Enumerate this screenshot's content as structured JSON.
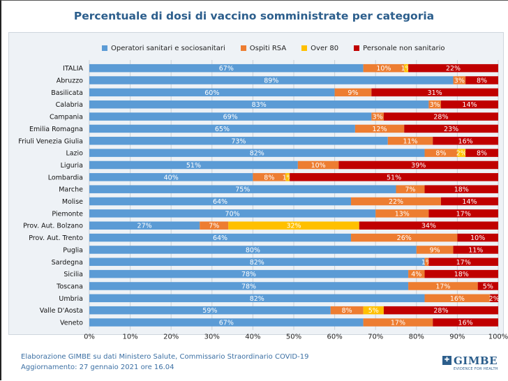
{
  "chart_data": {
    "type": "bar",
    "orientation": "horizontal",
    "stacked": true,
    "title": "Percentuale di dosi di vaccino somministrate per categoria",
    "categories": [
      "ITALIA",
      "Abruzzo",
      "Basilicata",
      "Calabria",
      "Campania",
      "Emilia Romagna",
      "Friuli Venezia Giulia",
      "Lazio",
      "Liguria",
      "Lombardia",
      "Marche",
      "Molise",
      "Piemonte",
      "Prov. Aut. Bolzano",
      "Prov. Aut. Trento",
      "Puglia",
      "Sardegna",
      "Sicilia",
      "Toscana",
      "Umbria",
      "Valle D'Aosta",
      "Veneto"
    ],
    "series": [
      {
        "name": "Operatori sanitari e sociosanitari",
        "color": "#5b9bd5",
        "values": [
          67,
          89,
          60,
          83,
          69,
          65,
          73,
          82,
          51,
          40,
          75,
          64,
          70,
          27,
          64,
          80,
          82,
          78,
          78,
          82,
          59,
          67
        ],
        "labels": [
          "67%",
          "89%",
          "60%",
          "83%",
          "69%",
          "65%",
          "73%",
          "82%",
          "51%",
          "40%",
          "75%",
          "64%",
          "70%",
          "27%",
          "64%",
          "80%",
          "82%",
          "78%",
          "78%",
          "82%",
          "59%",
          "67%"
        ]
      },
      {
        "name": "Ospiti RSA",
        "color": "#ed7d31",
        "values": [
          10,
          3,
          9,
          3,
          3,
          12,
          11,
          8,
          10,
          8,
          7,
          22,
          13,
          7,
          26,
          9,
          1,
          4,
          17,
          16,
          8,
          17
        ],
        "labels": [
          "10%",
          "3%",
          "9%",
          "3%",
          "3%",
          "12%",
          "11%",
          "8%",
          "10%",
          "8%",
          "7%",
          "22%",
          "13%",
          "7%",
          "26%",
          "9%",
          "1%",
          "4%",
          "17%",
          "16%",
          "8%",
          "17%"
        ]
      },
      {
        "name": "Over 80",
        "color": "#ffc000",
        "values": [
          1,
          0,
          0,
          0,
          0,
          0,
          0,
          2,
          0,
          1,
          0,
          0,
          0,
          32,
          0,
          0,
          0,
          0,
          0,
          0,
          5,
          0
        ],
        "labels": [
          "1%",
          "",
          "",
          "",
          "",
          "",
          "",
          "2%",
          "",
          "1%",
          "",
          "",
          "",
          "32%",
          "",
          "",
          "",
          "",
          "",
          "",
          "5%",
          ""
        ]
      },
      {
        "name": "Personale non sanitario",
        "color": "#c00000",
        "values": [
          22,
          8,
          31,
          14,
          28,
          23,
          16,
          8,
          39,
          51,
          18,
          14,
          17,
          34,
          10,
          11,
          17,
          18,
          5,
          2,
          28,
          16
        ],
        "labels": [
          "22%",
          "8%",
          "31%",
          "14%",
          "28%",
          "23%",
          "16%",
          "8%",
          "39%",
          "51%",
          "18%",
          "14%",
          "17%",
          "34%",
          "10%",
          "11%",
          "17%",
          "18%",
          "5%",
          "2%",
          "28%",
          "16%"
        ]
      }
    ],
    "xlim": [
      0,
      100
    ],
    "xticks": [
      "0%",
      "10%",
      "20%",
      "30%",
      "40%",
      "50%",
      "60%",
      "70%",
      "80%",
      "90%",
      "100%"
    ],
    "grid": true,
    "legend_position": "top"
  },
  "footer": {
    "line1": "Elaborazione GIMBE su dati Ministero Salute, Commissario Straordinario COVID-19",
    "line2": "Aggiornamento: 27 gennaio 2021 ore 16.04"
  },
  "logo": {
    "name": "GIMBE",
    "tagline": "EVIDENCE FOR HEALTH"
  }
}
